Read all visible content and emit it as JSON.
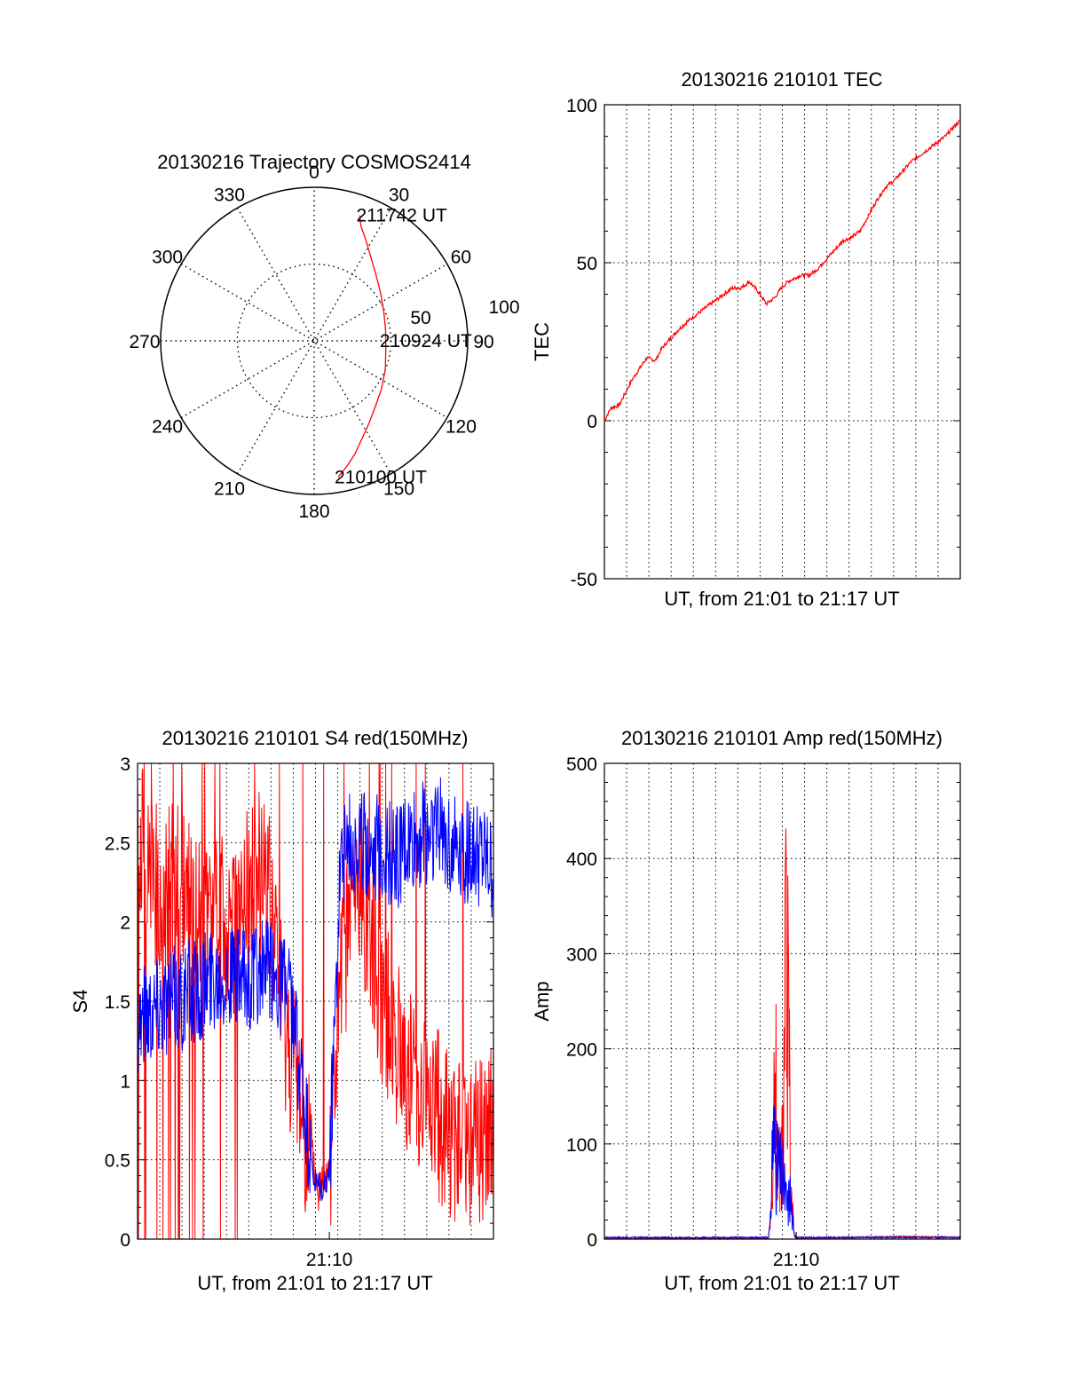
{
  "chart_data": [
    {
      "id": "trajectory",
      "type": "scatter",
      "polar": true,
      "title": "20130216 Trajectory COSMOS2414",
      "angle_labels": [
        "0",
        "30",
        "60",
        "90",
        "120",
        "150",
        "180",
        "210",
        "240",
        "270",
        "300",
        "330"
      ],
      "radius_labels": [
        "50",
        "100"
      ],
      "rlim": [
        0,
        100
      ],
      "grid": true,
      "color": "#ff0000",
      "series": [
        {
          "az": [
            170,
            165,
            160,
            154,
            147,
            138,
            126,
            112,
            97,
            82,
            68,
            55,
            43,
            34,
            27,
            22,
            20
          ],
          "zen": [
            90,
            84,
            78,
            71,
            65,
            59,
            54,
            50,
            47,
            47,
            49,
            53,
            59,
            66,
            74,
            81,
            87
          ]
        }
      ],
      "annotations": [
        {
          "text": "211742 UT",
          "az": 20,
          "zen": 87
        },
        {
          "text": "210924 UT",
          "az": 90,
          "zen": 45
        },
        {
          "text": "210100 UT",
          "az": 170,
          "zen": 90
        }
      ]
    },
    {
      "id": "tec",
      "type": "line",
      "title": "20130216 210101 TEC",
      "xlabel": "UT, from 21:01 to 21:17 UT",
      "ylabel": "TEC",
      "xlim": [
        0,
        16.7
      ],
      "ylim": [
        -50,
        100
      ],
      "yticks": [
        "-50",
        "0",
        "50",
        "100"
      ],
      "grid": true,
      "series": [
        {
          "color": "#ff0000",
          "x": [
            0,
            0.3,
            0.7,
            1.0,
            1.3,
            1.6,
            2.0,
            2.4,
            2.7,
            3.1,
            3.5,
            4.0,
            4.4,
            4.8,
            5.2,
            5.6,
            6.0,
            6.4,
            6.8,
            7.2,
            7.6,
            8.0,
            8.3,
            8.6,
            8.9,
            9.2,
            9.6,
            10.0,
            10.4,
            10.8,
            11.2,
            11.6,
            12.0,
            12.4,
            12.8,
            13.2,
            13.6,
            14.0,
            14.4,
            14.8,
            15.2,
            15.6,
            16.0,
            16.4,
            16.7
          ],
          "y": [
            0,
            4,
            5,
            9,
            13,
            16,
            20,
            19,
            23,
            26,
            29,
            32,
            34,
            36,
            38,
            40,
            42,
            42,
            44,
            41,
            37,
            39,
            42,
            44,
            45,
            46,
            46,
            48,
            51,
            54,
            57,
            58,
            60,
            65,
            70,
            74,
            76,
            79,
            82,
            84,
            86,
            88,
            90,
            93,
            95
          ]
        }
      ]
    },
    {
      "id": "s4",
      "type": "line",
      "title": "20130216 210101 S4 red(150MHz)",
      "xlabel": "UT, from 21:01 to 21:17 UT",
      "ylabel": "S4",
      "xlim": [
        0,
        16.7
      ],
      "ylim": [
        0,
        3
      ],
      "xticks": [
        {
          "x": 9,
          "label": "21:10"
        }
      ],
      "yticks": [
        "0",
        "0.5",
        "1",
        "1.5",
        "2",
        "2.5",
        "3"
      ],
      "grid": true,
      "series": [
        {
          "color": "#ff0000",
          "x": [
            0,
            1,
            2,
            3,
            4,
            5,
            6,
            7,
            7.5,
            8,
            8.5,
            9,
            9.5,
            10,
            10.5,
            11,
            11.5,
            12,
            12.5,
            13,
            14,
            15,
            16,
            16.7
          ],
          "y": [
            2.6,
            2.2,
            2.2,
            2.0,
            2.0,
            2.2,
            2.3,
            1.3,
            1.0,
            0.6,
            0.3,
            0.5,
            1.5,
            2.1,
            2.2,
            1.9,
            1.5,
            1.3,
            1.1,
            1.0,
            0.8,
            0.6,
            0.6,
            0.7
          ],
          "noise": 0.55
        },
        {
          "color": "#0000ff",
          "x": [
            0,
            1,
            2,
            3,
            4,
            5,
            6,
            7,
            7.5,
            8,
            8.3,
            8.6,
            9,
            9.5,
            10,
            11,
            12,
            13,
            14,
            15,
            16,
            16.7
          ],
          "y": [
            1.4,
            1.5,
            1.5,
            1.6,
            1.7,
            1.6,
            1.7,
            1.6,
            1.2,
            0.6,
            0.35,
            0.3,
            0.4,
            2.4,
            2.5,
            2.5,
            2.4,
            2.5,
            2.6,
            2.5,
            2.4,
            2.3
          ],
          "noise": 0.35
        }
      ]
    },
    {
      "id": "amp",
      "type": "line",
      "title": "20130216 210101 Amp red(150MHz)",
      "xlabel": "UT, from 21:01 to 21:17 UT",
      "ylabel": "Amp",
      "xlim": [
        0,
        16.7
      ],
      "ylim": [
        0,
        500
      ],
      "xticks": [
        {
          "x": 9,
          "label": "21:10"
        }
      ],
      "yticks": [
        "0",
        "100",
        "200",
        "300",
        "400",
        "500"
      ],
      "grid": true,
      "series": [
        {
          "color": "#ff0000",
          "x": [
            0,
            7.7,
            7.9,
            8.0,
            8.1,
            8.2,
            8.3,
            8.4,
            8.5,
            8.6,
            8.7,
            8.8,
            8.9,
            9.0,
            9.2,
            14,
            16.7
          ],
          "y": [
            0,
            0,
            50,
            310,
            150,
            80,
            120,
            200,
            400,
            370,
            200,
            60,
            10,
            0,
            0,
            2,
            1
          ]
        },
        {
          "color": "#0000ff",
          "x": [
            0,
            7.7,
            7.8,
            7.9,
            8.0,
            8.1,
            8.2,
            8.3,
            8.4,
            8.5,
            8.6,
            8.7,
            8.8,
            8.9,
            9.0,
            16.7
          ],
          "y": [
            1,
            1,
            30,
            190,
            150,
            110,
            130,
            90,
            100,
            70,
            50,
            80,
            40,
            5,
            1,
            1
          ]
        }
      ]
    }
  ]
}
